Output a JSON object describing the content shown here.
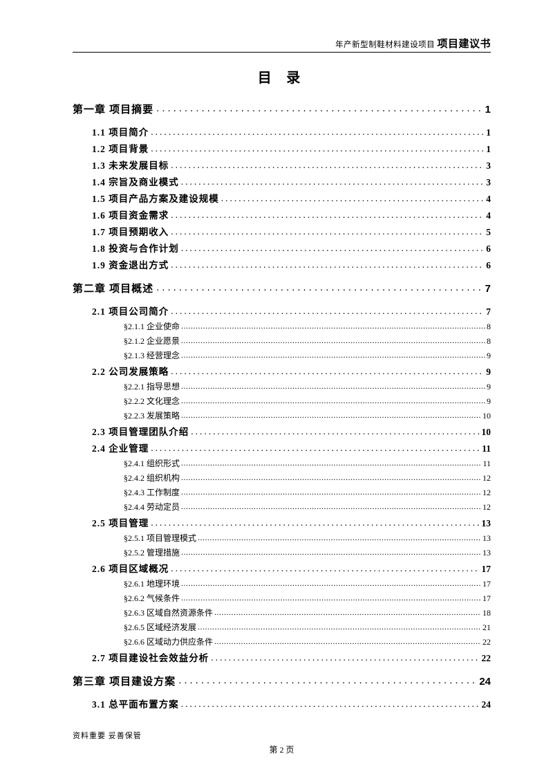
{
  "header": {
    "prefix": "年产新型制鞋材料建设项目",
    "suffix": "项目建议书"
  },
  "title": "目 录",
  "toc": [
    {
      "level": "chapter",
      "label": "第一章  项目摘要",
      "page": "1"
    },
    {
      "level": "section",
      "label": "1.1 项目简介",
      "page": "1"
    },
    {
      "level": "section",
      "label": "1.2 项目背景",
      "page": "1"
    },
    {
      "level": "section",
      "label": "1.3 未来发展目标",
      "page": "3"
    },
    {
      "level": "section",
      "label": "1.4 宗旨及商业模式",
      "page": "3"
    },
    {
      "level": "section",
      "label": "1.5 项目产品方案及建设规模",
      "page": "4"
    },
    {
      "level": "section",
      "label": "1.6 项目资金需求",
      "page": "4"
    },
    {
      "level": "section",
      "label": "1.7 项目预期收入",
      "page": "5"
    },
    {
      "level": "section",
      "label": "1.8 投资与合作计划",
      "page": "6"
    },
    {
      "level": "section",
      "label": "1.9 资金退出方式",
      "page": "6"
    },
    {
      "level": "chapter",
      "label": "第二章  项目概述",
      "page": "7"
    },
    {
      "level": "section",
      "label": "2.1 项目公司简介",
      "page": "7"
    },
    {
      "level": "sub",
      "label": "§2.1.1 企业使命",
      "page": "8"
    },
    {
      "level": "sub",
      "label": "§2.1.2 企业愿景",
      "page": "8"
    },
    {
      "level": "sub",
      "label": "§2.1.3 经营理念",
      "page": "9"
    },
    {
      "level": "section",
      "label": "2.2 公司发展策略",
      "page": "9"
    },
    {
      "level": "sub",
      "label": "§2.2.1 指导思想",
      "page": "9"
    },
    {
      "level": "sub",
      "label": "§2.2.2 文化理念",
      "page": "9"
    },
    {
      "level": "sub",
      "label": "§2.2.3 发展策略",
      "page": "10"
    },
    {
      "level": "section",
      "label": "2.3 项目管理团队介绍",
      "page": "10"
    },
    {
      "level": "section",
      "label": "2.4 企业管理",
      "page": "11"
    },
    {
      "level": "sub",
      "label": "§2.4.1 组织形式",
      "page": "11"
    },
    {
      "level": "sub",
      "label": "§2.4.2 组织机构",
      "page": "12"
    },
    {
      "level": "sub",
      "label": "§2.4.3 工作制度",
      "page": "12"
    },
    {
      "level": "sub",
      "label": "§2.4.4 劳动定员",
      "page": "12"
    },
    {
      "level": "section",
      "label": "2.5 项目管理",
      "page": "13"
    },
    {
      "level": "sub",
      "label": "§2.5.1 项目管理模式",
      "page": "13"
    },
    {
      "level": "sub",
      "label": "§2.5.2 管理措施",
      "page": "13"
    },
    {
      "level": "section",
      "label": "2.6 项目区域概况",
      "page": "17"
    },
    {
      "level": "sub",
      "label": "§2.6.1 地理环境",
      "page": "17"
    },
    {
      "level": "sub",
      "label": "§2.6.2 气候条件",
      "page": "17"
    },
    {
      "level": "sub",
      "label": "§2.6.3 区域自然资源条件",
      "page": "18"
    },
    {
      "level": "sub",
      "label": "§2.6.5 区域经济发展",
      "page": "21"
    },
    {
      "level": "sub",
      "label": "§2.6.6 区域动力供应条件",
      "page": "22"
    },
    {
      "level": "section",
      "label": "2.7 项目建设社会效益分析",
      "page": "22"
    },
    {
      "level": "chapter",
      "label": "第三章  项目建设方案",
      "page": "24"
    },
    {
      "level": "section",
      "label": "3.1 总平面布置方案",
      "page": "24"
    }
  ],
  "footer": {
    "note": "资料重要  妥善保管",
    "pagenum": "第 2 页"
  }
}
